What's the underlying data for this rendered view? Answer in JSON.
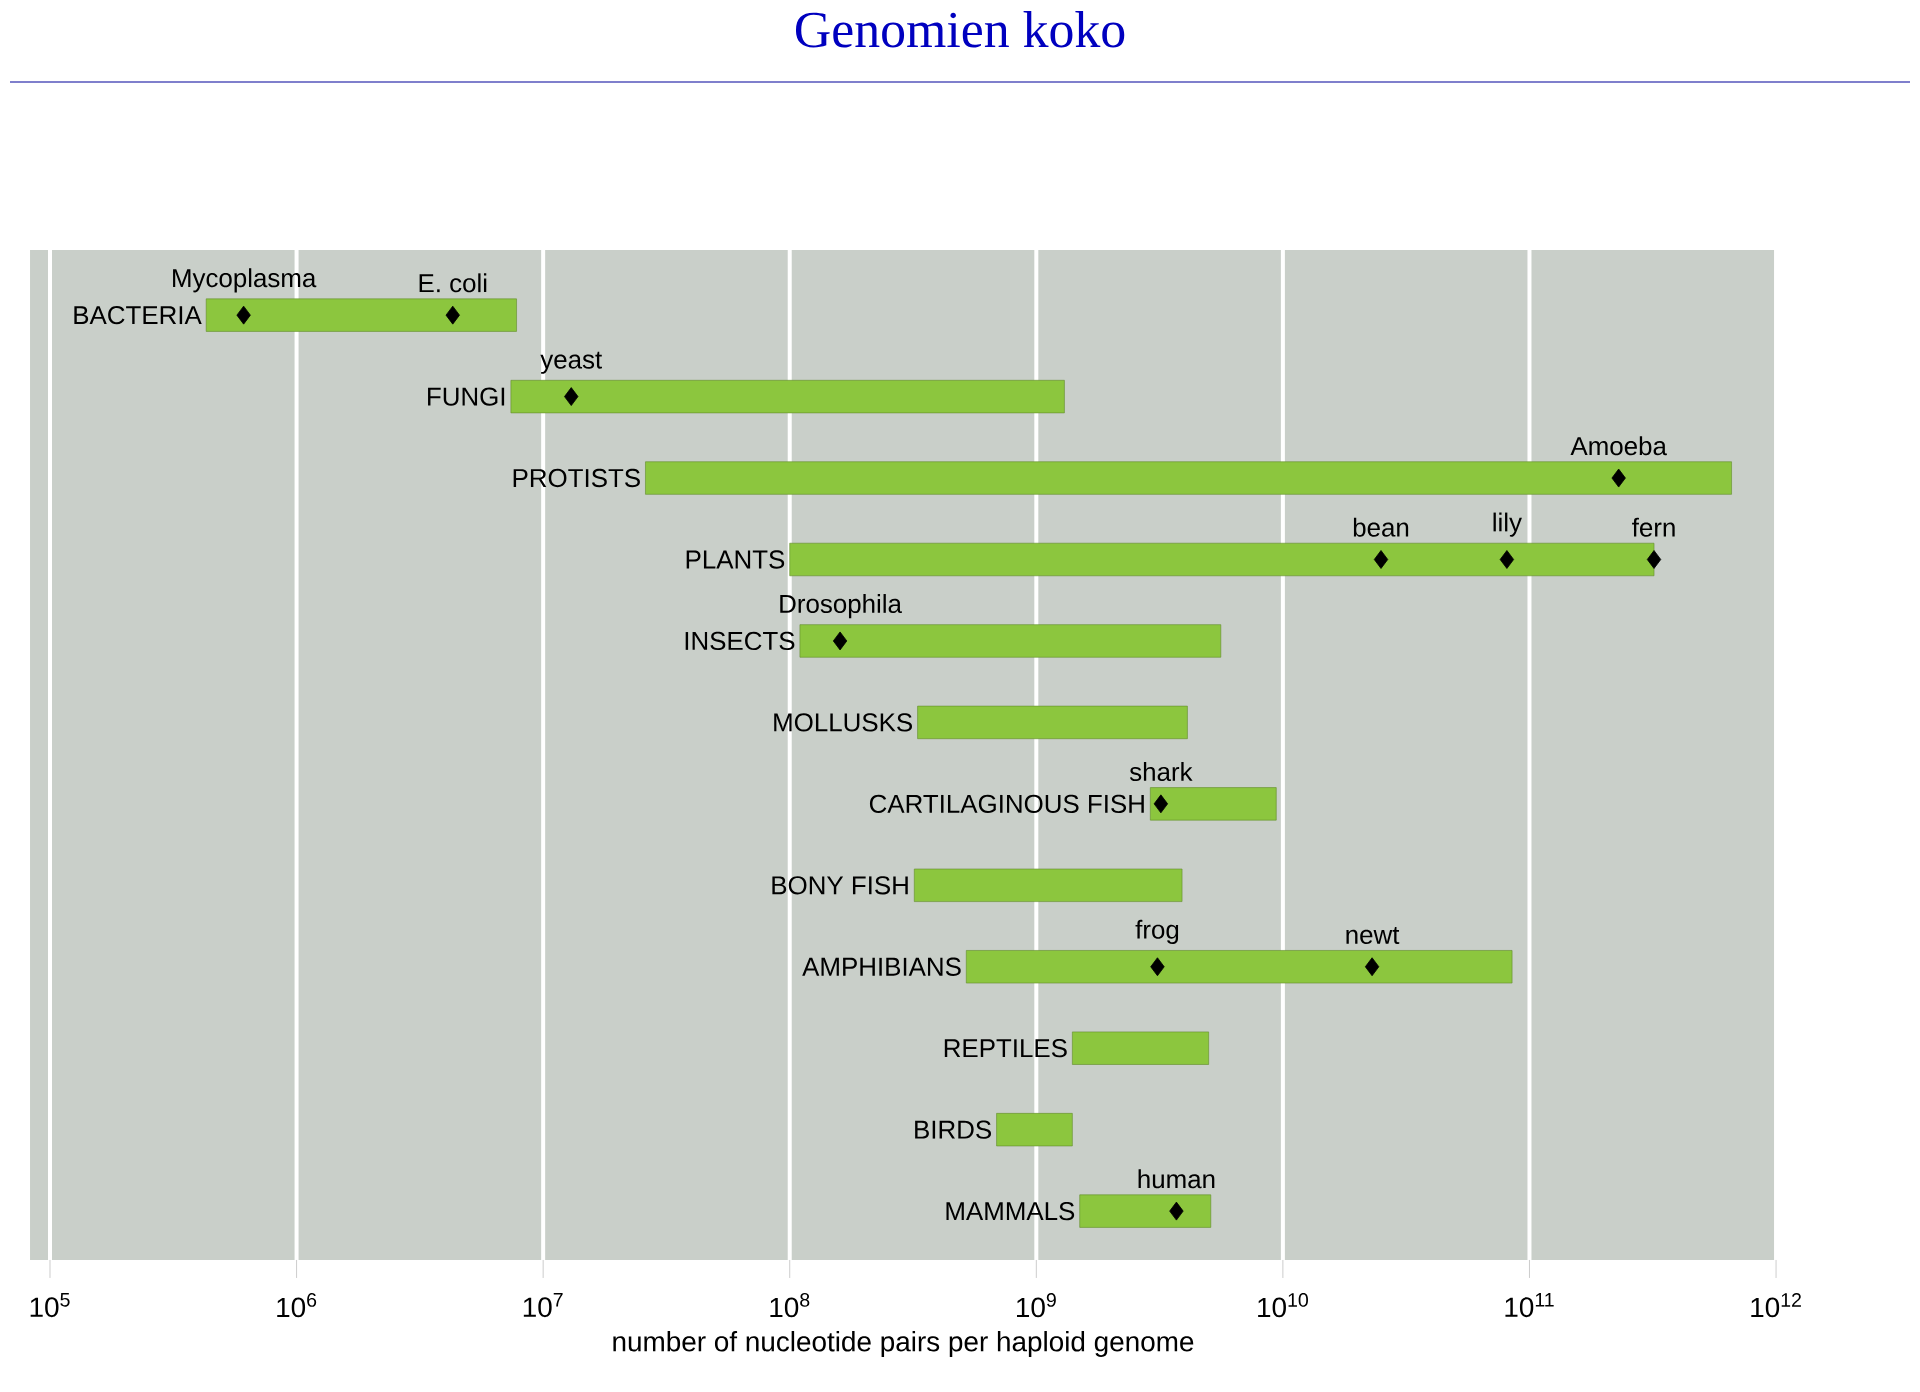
{
  "chart_data": {
    "type": "bar",
    "orientation": "horizontal",
    "title": "Genomien koko",
    "xlabel": "number of nucleotide pairs per haploid genome",
    "log": "x",
    "grid": "x",
    "categories": [
      "BACTERIA",
      "FUNGI",
      "PROTISTS",
      "PLANTS",
      "INSECTS",
      "MOLLUSKS",
      "CARTILAGINOUS FISH",
      "BONY FISH",
      "AMPHIBIANS",
      "REPTILES",
      "BIRDS",
      "MAMMALS"
    ],
    "series": [
      {
        "color": "#8cc63e",
        "base": [
          430000,
          7400000,
          26000000,
          100000000,
          110000000,
          330000000,
          2900000000,
          320000000,
          520000000,
          1400000000,
          690000000,
          1500000000
        ],
        "values": [
          7370000,
          1292600000,
          659974000000,
          319900000000,
          5490000000,
          3770000000,
          6500000000,
          3580000000,
          84480000000,
          3600000000,
          710000000,
          3600000000
        ]
      },
      {
        "type": "scatter",
        "color": "#000000",
        "marker": "diamond",
        "x": [
          "BACTERIA",
          "BACTERIA",
          "FUNGI",
          "PROTISTS",
          "PLANTS",
          "PLANTS",
          "PLANTS",
          "INSECTS",
          "CARTILAGINOUS FISH",
          "AMPHIBIANS",
          "AMPHIBIANS",
          "MAMMALS"
        ],
        "values": [
          610000,
          4300000,
          13000000,
          230000000000,
          25000000000,
          81000000000,
          320000000000,
          160000000,
          3200000000,
          3100000000,
          23000000000,
          3700000000
        ],
        "value_labels": [
          "Mycoplasma",
          "E. coli",
          "yeast",
          "Amoeba",
          "bean",
          "lily",
          "fern",
          "Drosophila",
          "shark",
          "frog",
          "newt",
          "human"
        ]
      }
    ],
    "xlim": [
      83000,
      1000000000000
    ],
    "xticks": [
      {
        "value": 100000,
        "label": "10$^{5}$"
      },
      {
        "value": 1000000,
        "label": "10$^{6}$"
      },
      {
        "value": 10000000,
        "label": "10$^{7}$"
      },
      {
        "value": 100000000,
        "label": "10$^{8}$"
      },
      {
        "value": 1000000000,
        "label": "10$^{9}$"
      },
      {
        "value": 10000000000,
        "label": "10$^{10}$"
      },
      {
        "value": 100000000000,
        "label": "10$^{11}$"
      },
      {
        "value": 1000000000000,
        "label": "10$^{12}$"
      }
    ]
  }
}
